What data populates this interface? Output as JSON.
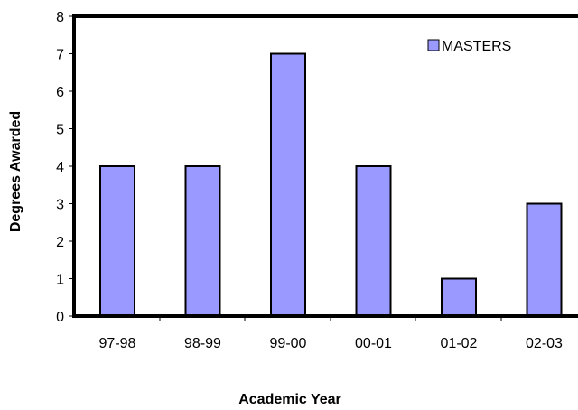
{
  "chart_data": {
    "type": "bar",
    "categories": [
      "97-98",
      "98-99",
      "99-00",
      "00-01",
      "01-02",
      "02-03"
    ],
    "series": [
      {
        "name": "MASTERS",
        "values": [
          4,
          4,
          7,
          4,
          1,
          3
        ],
        "color": "#9999FF"
      }
    ],
    "xlabel": "Academic Year",
    "ylabel": "Degrees Awarded",
    "ylim": [
      0,
      8
    ],
    "yticks": [
      0,
      1,
      2,
      3,
      4,
      5,
      6,
      7,
      8
    ],
    "grid": false,
    "legend_position": "top-right"
  }
}
